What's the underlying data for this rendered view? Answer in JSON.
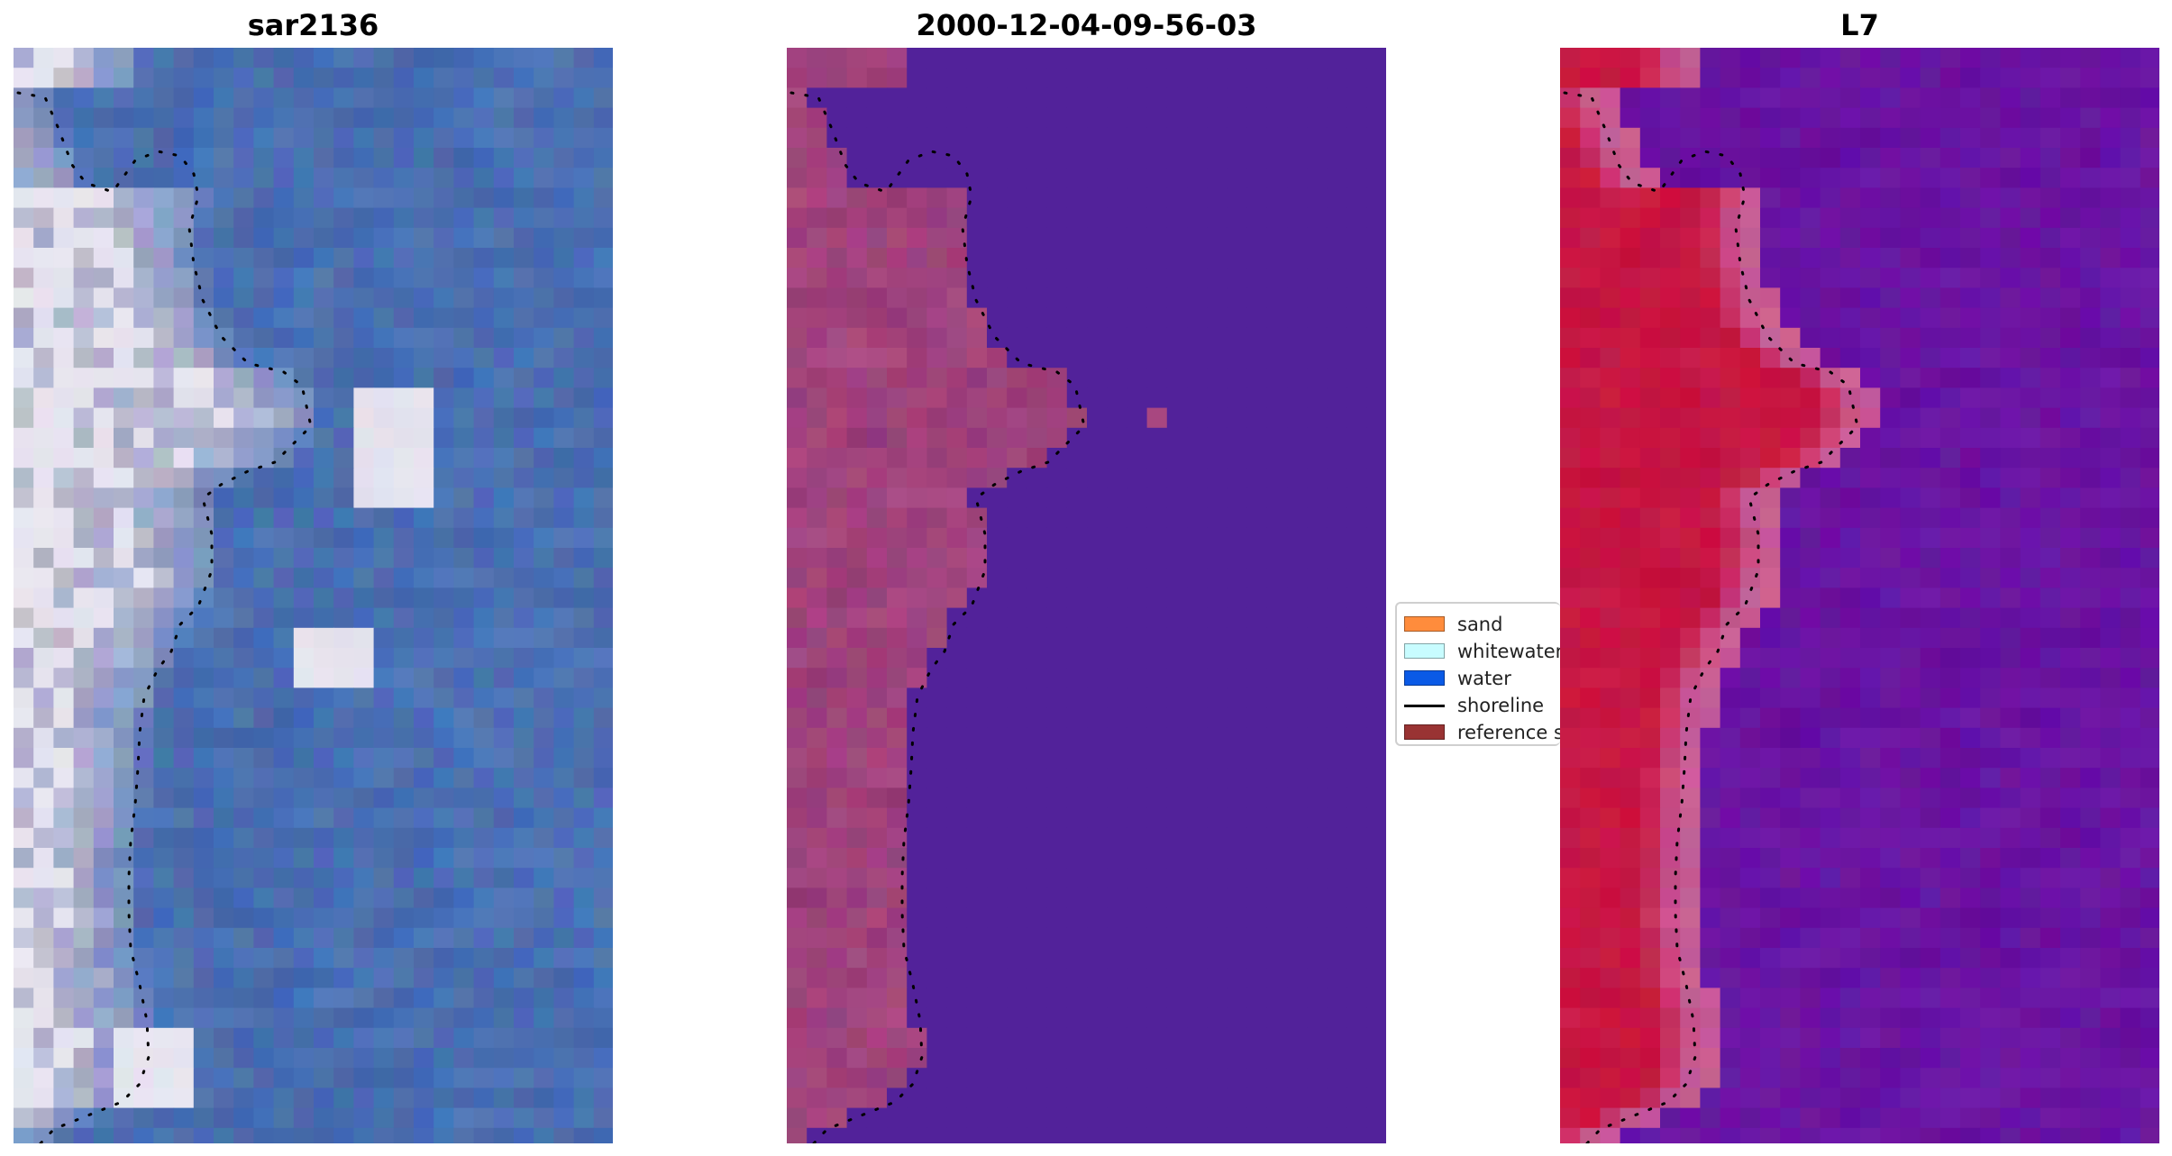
{
  "titles": {
    "left": "sar2136",
    "center": "2000-12-04-09-56-03",
    "right": "L7"
  },
  "legend": {
    "items": [
      {
        "label": "sand",
        "color": "#ff8c3c",
        "kind": "patch"
      },
      {
        "label": "whitewater",
        "color": "#c8fcff",
        "kind": "patch"
      },
      {
        "label": "water",
        "color": "#0a5ae6",
        "kind": "patch"
      },
      {
        "label": "shoreline",
        "color": "#000000",
        "kind": "line"
      },
      {
        "label": "reference s",
        "color": "#993333",
        "kind": "patch"
      }
    ]
  },
  "colors": {
    "sar_water": "#4a6fb2",
    "sar_land": "#c9c3d6",
    "class_water": "#52229a",
    "class_land": "#a84780",
    "l7_water": "#6a109f",
    "l7_land": "#c8123e",
    "l7_edge": "#c85c95",
    "shoreline": "#000000"
  }
}
